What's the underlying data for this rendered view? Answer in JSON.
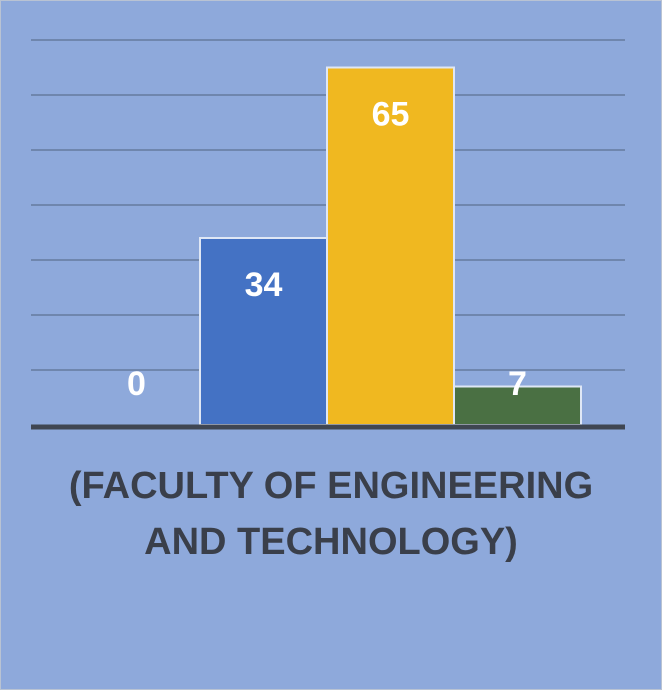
{
  "chart_data": {
    "type": "bar",
    "categories": [
      "(FACULTY OF ENGINEERING AND TECHNOLOGY)"
    ],
    "category_label_lines": [
      "(FACULTY OF ENGINEERING",
      "AND TECHNOLOGY)"
    ],
    "series": [
      {
        "values": [
          0
        ],
        "color": "#8ea9db"
      },
      {
        "values": [
          34
        ],
        "color": "#4472c4"
      },
      {
        "values": [
          65
        ],
        "color": "#f0b820"
      },
      {
        "values": [
          7
        ],
        "color": "#4a7043"
      }
    ],
    "data_labels": [
      "0",
      "34",
      "65",
      "7"
    ],
    "ylim": [
      0,
      70
    ],
    "grid": true,
    "legend": "none",
    "title": "",
    "xlabel": "",
    "ylabel": "",
    "colors": {
      "background": "#8ea9db",
      "gridline": "#6f86ad",
      "axis": "#3f4652",
      "category_text": "#3a3f4a",
      "data_label_text": "#ffffff"
    }
  }
}
